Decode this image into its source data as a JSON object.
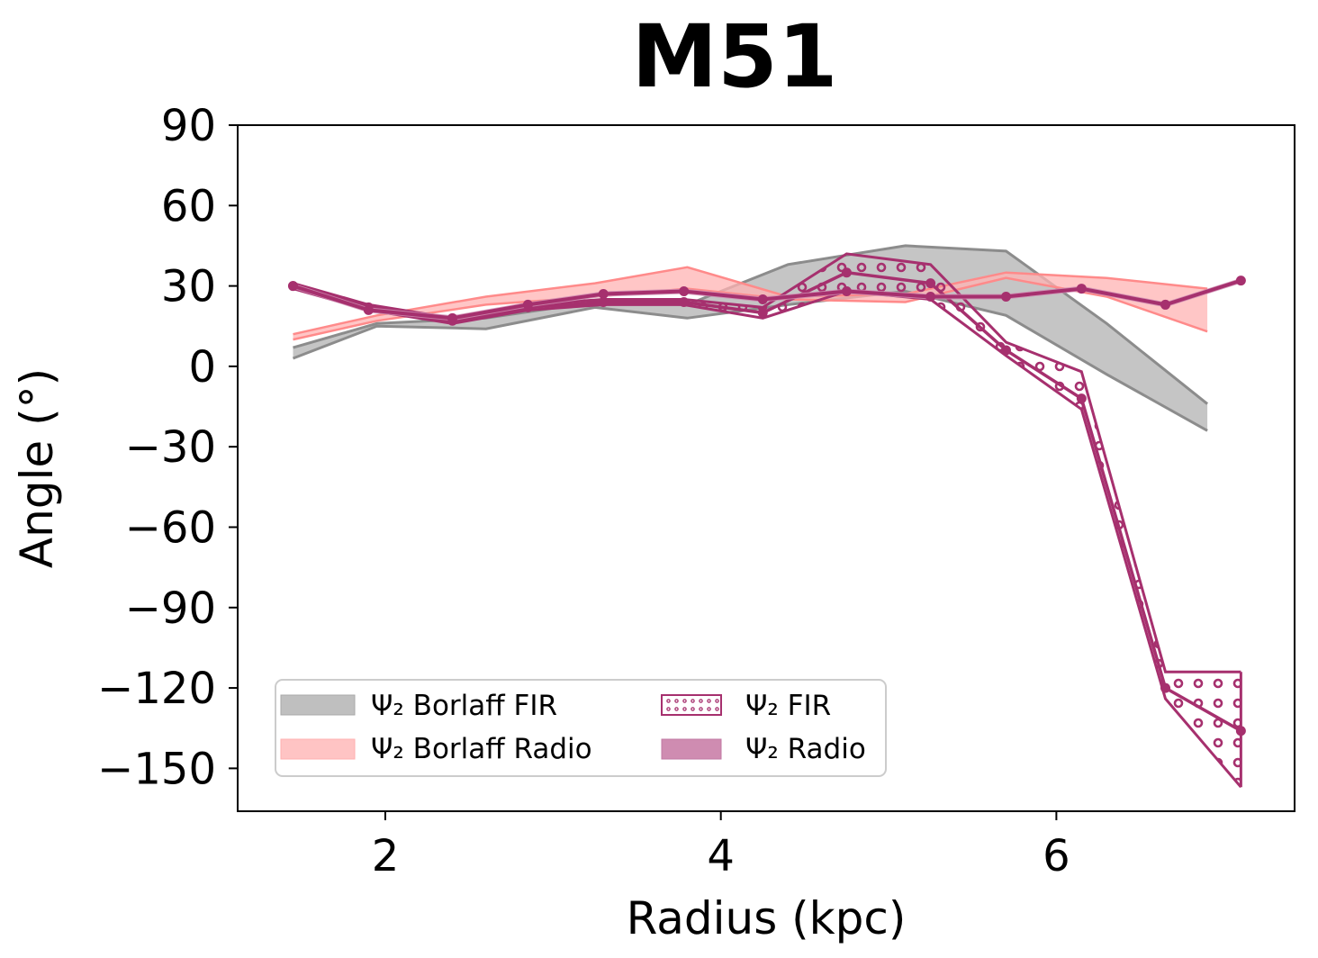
{
  "chart_data": {
    "type": "area",
    "title": "M51",
    "xlabel": "Radius (kpc)",
    "ylabel": "Angle (°)",
    "xlim": [
      1.12,
      7.42
    ],
    "ylim": [
      -166,
      90
    ],
    "xticks": [
      2,
      4,
      6
    ],
    "yticks": [
      90,
      60,
      30,
      0,
      -30,
      -60,
      -90,
      -120,
      -150
    ],
    "xtick_labels": [
      "2",
      "4",
      "6"
    ],
    "ytick_labels": [
      "90",
      "60",
      "30",
      "0",
      "−30",
      "−60",
      "−90",
      "−120",
      "−150"
    ],
    "grid": false,
    "legend_position": "lower-left",
    "series": [
      {
        "name": "Ψ2 Borlaff FIR",
        "legend_label": "Ψ₂ Borlaff FIR",
        "kind": "band",
        "color": "#bfbfbf",
        "edge_color": "#8c8c8c",
        "x": [
          1.45,
          1.95,
          2.6,
          3.25,
          3.8,
          4.4,
          5.1,
          5.7,
          6.3,
          6.9
        ],
        "upper": [
          7,
          16,
          18,
          24,
          23,
          38,
          45,
          43,
          16,
          -14
        ],
        "lower": [
          3,
          15,
          14,
          22,
          18,
          23,
          28,
          19,
          -3,
          -24
        ]
      },
      {
        "name": "Ψ2 Borlaff Radio",
        "legend_label": "Ψ₂ Borlaff Radio",
        "kind": "band",
        "color": "#ffb3b3",
        "edge_color": "#ff8a8a",
        "x": [
          1.45,
          1.95,
          2.6,
          3.25,
          3.8,
          4.4,
          5.1,
          5.7,
          6.3,
          6.9
        ],
        "upper": [
          12,
          19,
          26,
          31,
          37,
          26,
          27,
          35,
          33,
          29
        ],
        "lower": [
          10,
          17,
          23,
          26,
          29,
          25,
          24,
          33,
          26,
          13
        ]
      },
      {
        "name": "Ψ2 FIR",
        "legend_label": "Ψ₂ FIR",
        "kind": "band-hatched",
        "color": "#a6306e",
        "x": [
          1.45,
          1.9,
          2.4,
          2.85,
          3.3,
          3.78,
          4.25,
          4.75,
          5.25,
          5.7,
          6.15,
          6.65,
          7.1
        ],
        "mid": [
          30,
          22,
          17,
          22,
          24,
          24,
          20,
          35,
          31,
          6,
          -12,
          -120,
          -136
        ],
        "upper": [
          31,
          23,
          18,
          23,
          25,
          25,
          22,
          42,
          38,
          9,
          -2,
          -114,
          -114
        ],
        "lower": [
          29,
          21,
          16,
          21,
          23,
          23,
          18,
          28,
          25,
          4,
          -16,
          -124,
          -157
        ]
      },
      {
        "name": "Ψ2 Radio",
        "legend_label": "Ψ₂ Radio",
        "kind": "band",
        "color": "#cf8cb1",
        "edge_color": "#a6306e",
        "x": [
          1.45,
          1.9,
          2.4,
          2.85,
          3.3,
          3.78,
          4.25,
          4.75,
          5.25,
          5.7,
          6.15,
          6.65,
          7.1
        ],
        "mid": [
          30,
          21,
          18,
          23,
          27,
          28,
          25,
          28,
          26,
          26,
          29,
          23,
          32
        ],
        "upper": [
          31,
          22,
          19,
          24,
          28,
          29,
          26,
          29,
          27,
          27,
          30,
          24,
          33
        ],
        "lower": [
          29,
          20,
          17,
          22,
          26,
          27,
          24,
          27,
          25,
          25,
          28,
          22,
          31
        ]
      }
    ]
  }
}
